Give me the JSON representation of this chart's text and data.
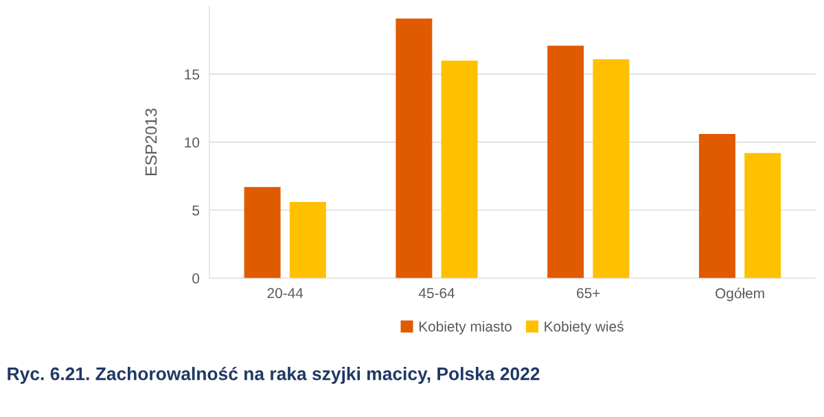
{
  "chart_data": {
    "type": "bar",
    "title": "Ryc. 6.21. Zachorowalność na raka szyjki macicy, Polska 2022",
    "ylabel": "ESP2013",
    "categories": [
      "20-44",
      "45-64",
      "65+",
      "Ogółem"
    ],
    "series": [
      {
        "name": "Kobiety miasto",
        "color": "#e05a00",
        "values": [
          6.7,
          19.1,
          17.1,
          10.6
        ]
      },
      {
        "name": "Kobiety wieś",
        "color": "#ffc000",
        "values": [
          5.6,
          16.0,
          16.1,
          9.2
        ]
      }
    ],
    "ylim": [
      0,
      20
    ],
    "yticks": [
      0,
      5,
      10,
      15
    ],
    "grid": "y",
    "legend": "bottom"
  }
}
